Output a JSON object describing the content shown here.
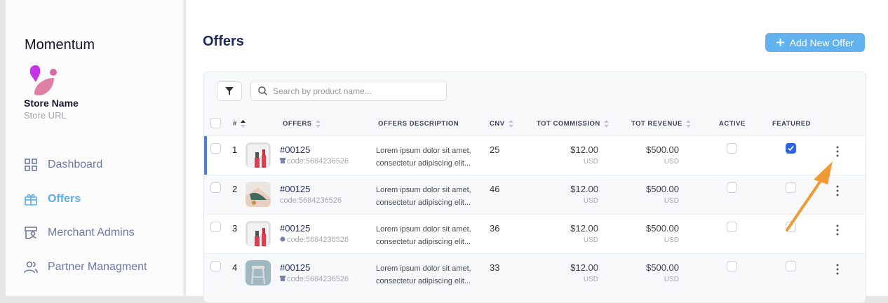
{
  "sidebar": {
    "brand": "Momentum",
    "store_name": "Store Name",
    "store_url": "Store URL",
    "items": [
      {
        "label": "Dashboard",
        "icon": "grid-icon"
      },
      {
        "label": "Offers",
        "icon": "gift-icon",
        "active": true
      },
      {
        "label": "Merchant Admins",
        "icon": "store-user-icon"
      },
      {
        "label": "Partner Managment",
        "icon": "users-icon"
      }
    ]
  },
  "header": {
    "title": "Offers",
    "add_button": "Add New Offer"
  },
  "search": {
    "placeholder": "Search by product name..."
  },
  "table": {
    "columns": [
      "#",
      "OFFERS",
      "OFFERS DESCRIPTION",
      "CNV",
      "TOT COMMISSION",
      "TOT REVENUE",
      "ACTIVE",
      "FEATURED"
    ],
    "rows": [
      {
        "n": "1",
        "id": "#00125",
        "code": "code:5684236526",
        "desc1": "Lorem ipsum dolor sit amet,",
        "desc2": "consectetur adipiscing elit...",
        "cnv": "25",
        "commission": "$12.00",
        "commission_cur": "USD",
        "revenue": "$500.00",
        "revenue_cur": "USD",
        "active": false,
        "featured": true,
        "image": "lipstick"
      },
      {
        "n": "2",
        "id": "#00125",
        "code": "code:5684236526",
        "desc1": "Lorem ipsum dolor sit amet,",
        "desc2": "consectetur adipiscing elit...",
        "cnv": "46",
        "commission": "$12.00",
        "commission_cur": "USD",
        "revenue": "$500.00",
        "revenue_cur": "USD",
        "active": false,
        "featured": false,
        "image": "shoe"
      },
      {
        "n": "3",
        "id": "#00125",
        "code": "code:5684236526",
        "desc1": "Lorem ipsum dolor sit amet,",
        "desc2": "consectetur adipiscing elit...",
        "cnv": "36",
        "commission": "$12.00",
        "commission_cur": "USD",
        "revenue": "$500.00",
        "revenue_cur": "USD",
        "active": false,
        "featured": false,
        "image": "lipstick"
      },
      {
        "n": "4",
        "id": "#00125",
        "code": "code:5684236526",
        "desc1": "Lorem ipsum dolor sit amet,",
        "desc2": "consectetur adipiscing elit...",
        "cnv": "33",
        "commission": "$12.00",
        "commission_cur": "USD",
        "revenue": "$500.00",
        "revenue_cur": "USD",
        "active": false,
        "featured": false,
        "image": "stool"
      }
    ]
  },
  "colors": {
    "accent": "#5aacef",
    "checkbox": "#2f63e0",
    "annotation_arrow": "#f09a36"
  }
}
